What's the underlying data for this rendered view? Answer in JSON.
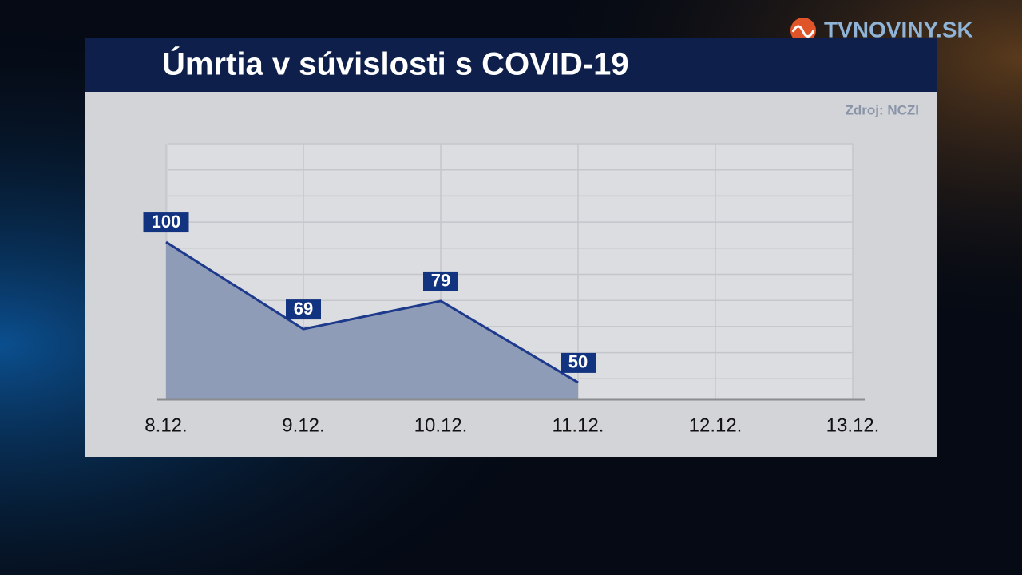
{
  "chart_data": {
    "type": "area-line",
    "title": "Úmrtia v súvislosti s COVID-19",
    "source": "Zdroj: NCZI",
    "brand": "TVNOVINY.SK",
    "categories": [
      "8.12.",
      "9.12.",
      "10.12.",
      "11.12.",
      "12.12.",
      "13.12."
    ],
    "values": [
      100,
      69,
      79,
      50,
      null,
      null
    ],
    "color": "#1e3a8c",
    "fill": "#8f9cb7",
    "ylim": [
      44,
      135
    ],
    "grid": true
  }
}
